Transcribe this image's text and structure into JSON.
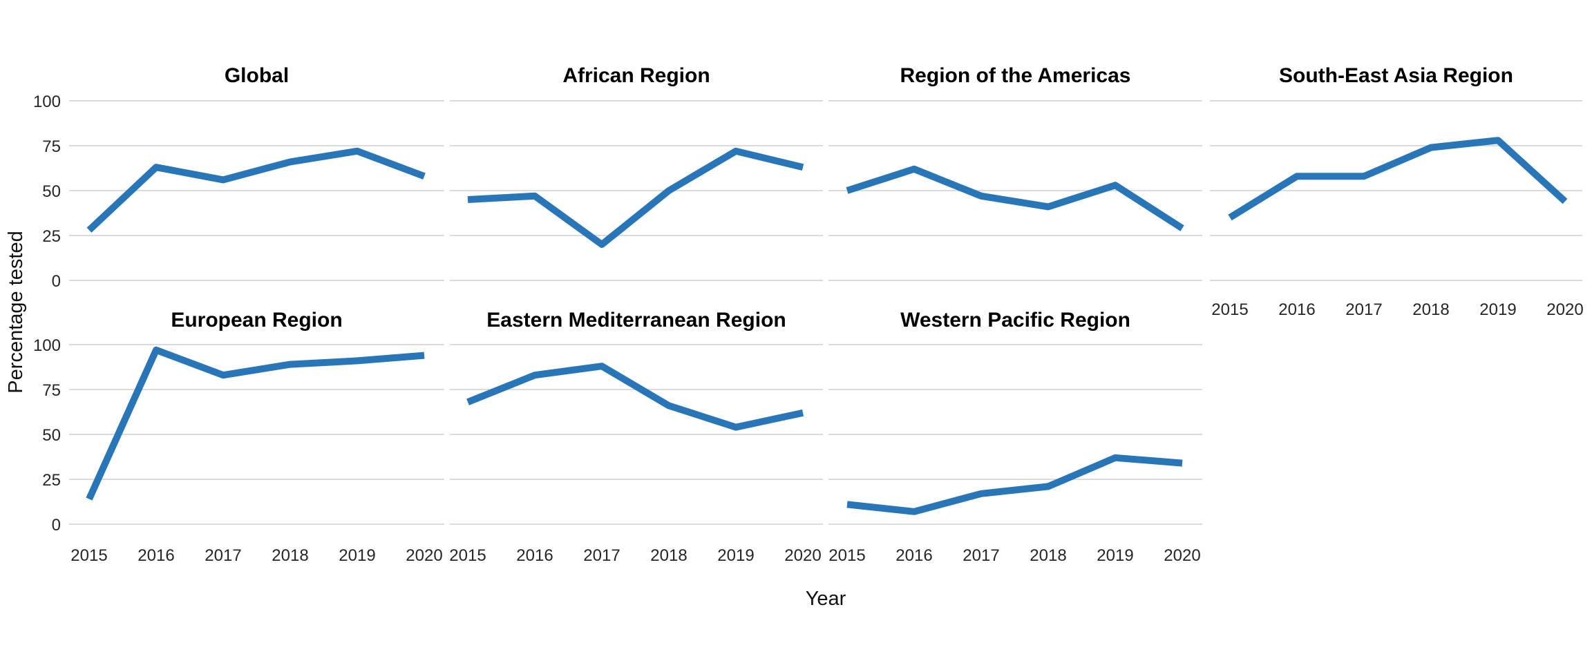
{
  "figure": {
    "background": "#ffffff",
    "line_color": "#2875B8",
    "grid_color": "#D6D6D6",
    "title_color": "#000000",
    "tick_color": "#262626"
  },
  "chart_data": {
    "type": "line",
    "x": [
      2015,
      2016,
      2017,
      2018,
      2019,
      2020
    ],
    "xlabel": "Year",
    "ylabel": "Percentage tested",
    "ylim": [
      0,
      100
    ],
    "yticks": [
      0,
      25,
      50,
      75,
      100
    ],
    "grid": "horizontal-only",
    "legend": false,
    "facet_columns": 4,
    "facet_rows": 2,
    "facets": [
      {
        "title": "Global",
        "values": [
          28,
          63,
          56,
          66,
          72,
          58
        ]
      },
      {
        "title": "African Region",
        "values": [
          45,
          47,
          20,
          50,
          72,
          63
        ]
      },
      {
        "title": "Region of the Americas",
        "values": [
          50,
          62,
          47,
          41,
          53,
          29
        ]
      },
      {
        "title": "South-East Asia Region",
        "values": [
          35,
          58,
          58,
          74,
          78,
          44
        ]
      },
      {
        "title": "European Region",
        "values": [
          14,
          97,
          83,
          89,
          91,
          94
        ]
      },
      {
        "title": "Eastern Mediterranean Region",
        "values": [
          68,
          83,
          88,
          66,
          54,
          62
        ]
      },
      {
        "title": "Western Pacific Region",
        "values": [
          11,
          7,
          17,
          21,
          37,
          34
        ]
      }
    ]
  }
}
